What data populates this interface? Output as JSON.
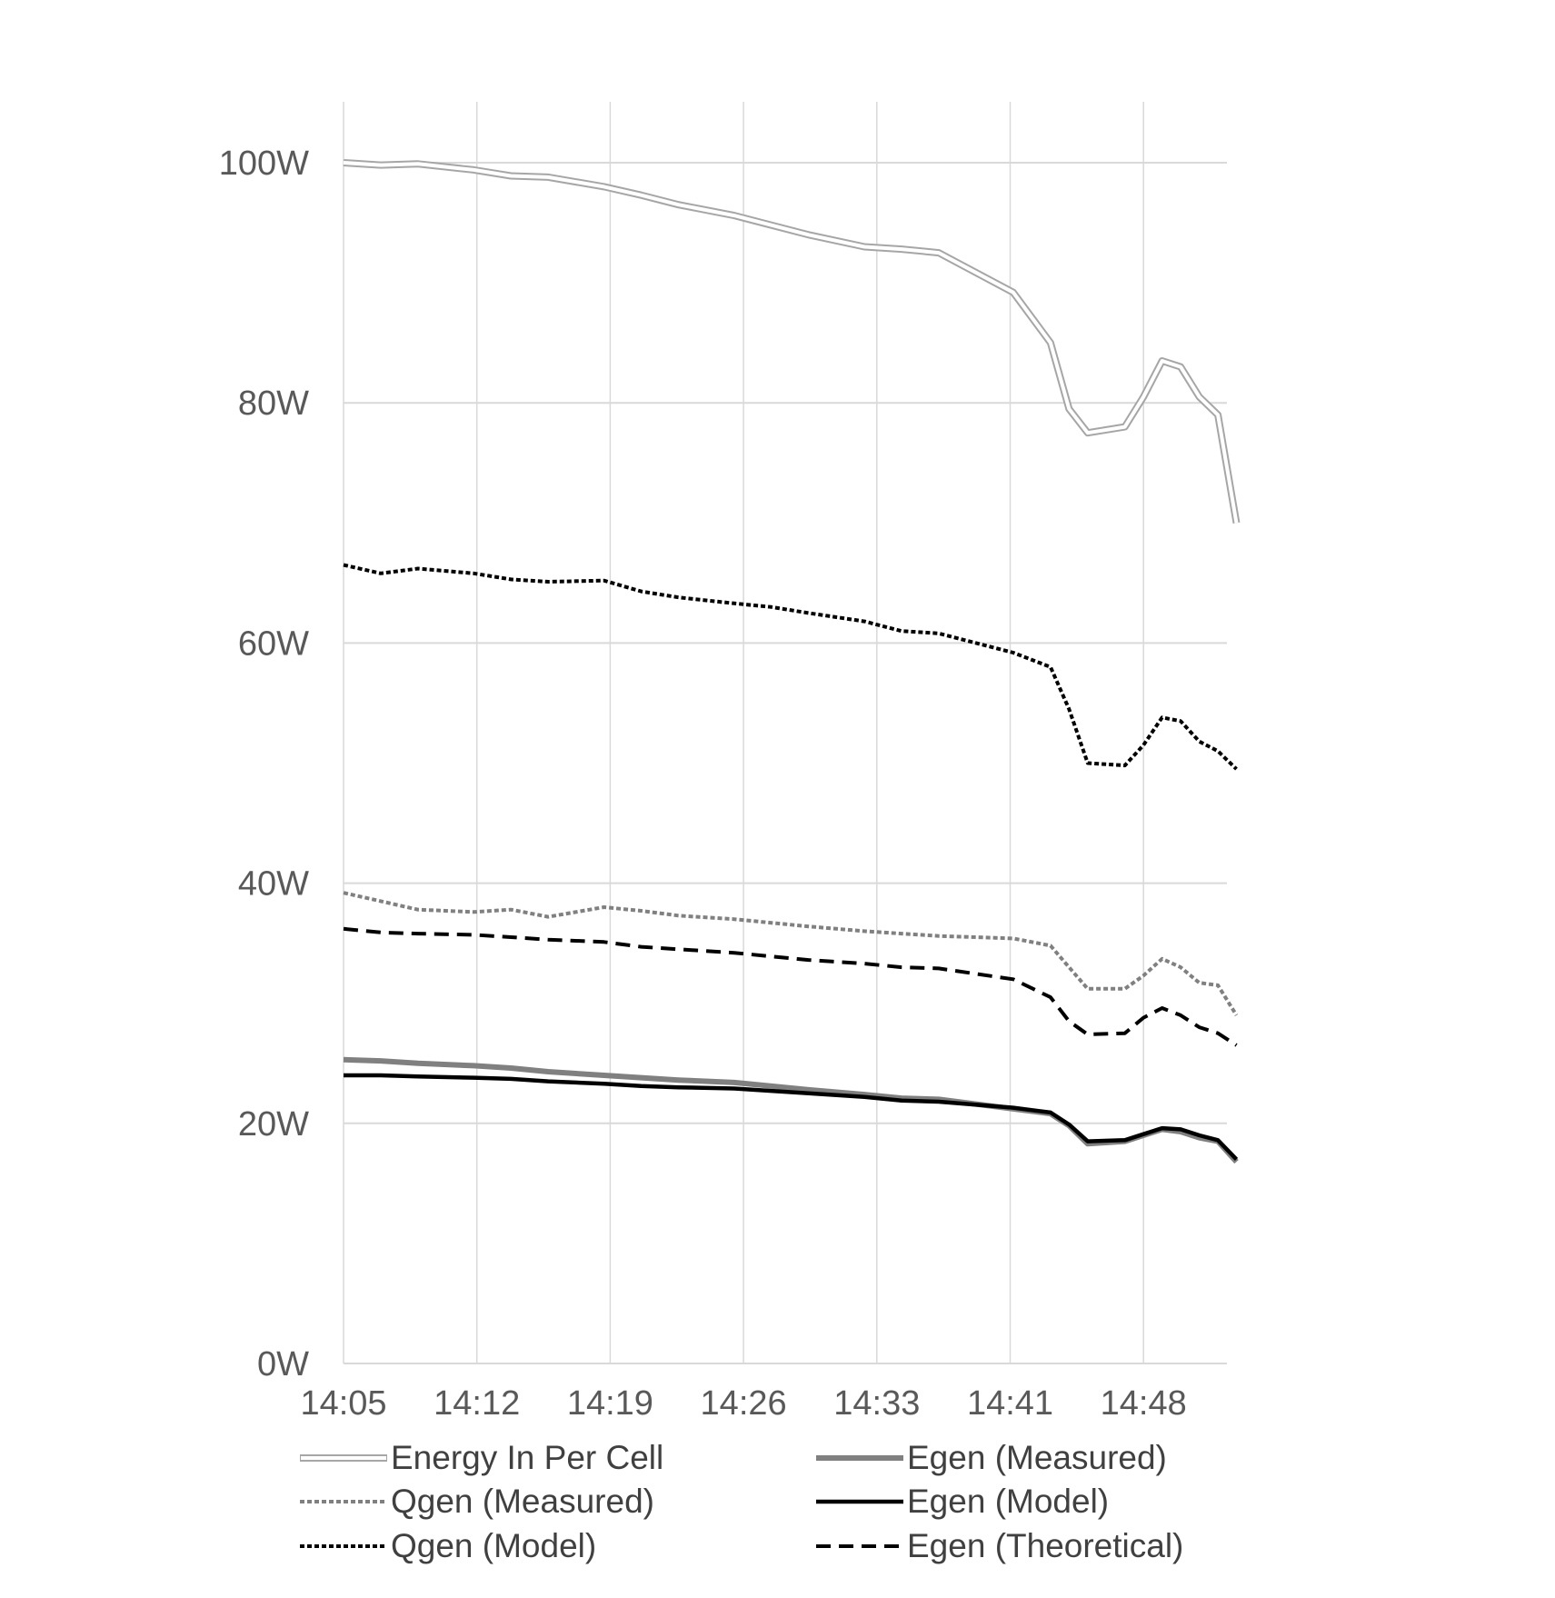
{
  "chart_data": {
    "type": "line",
    "title": "",
    "xlabel": "",
    "ylabel": "",
    "ylim": [
      0,
      105
    ],
    "y_ticks": [
      "0W",
      "20W",
      "40W",
      "60W",
      "80W",
      "100W"
    ],
    "x_ticks": [
      "14:05",
      "14:12",
      "14:19",
      "14:26",
      "14:33",
      "14:41",
      "14:48"
    ],
    "grid": "major horizontal and vertical",
    "legend_position": "bottom",
    "x": [
      "14:05",
      "14:07",
      "14:09",
      "14:12",
      "14:14",
      "14:16",
      "14:19",
      "14:21",
      "14:23",
      "14:26",
      "14:28",
      "14:30",
      "14:33",
      "14:35",
      "14:37",
      "14:41",
      "14:43",
      "14:44",
      "14:45",
      "14:47",
      "14:48",
      "14:49",
      "14:50",
      "14:51",
      "14:52",
      "14:53"
    ],
    "series": [
      {
        "name": "Energy In Per Cell",
        "style": "double-outline",
        "color": "#a6a6a6",
        "values": [
          100,
          99.8,
          99.9,
          99.4,
          98.9,
          98.8,
          98.0,
          97.3,
          96.5,
          95.6,
          94.8,
          94.0,
          93.0,
          92.8,
          92.5,
          89.2,
          85.0,
          79.5,
          77.5,
          78.0,
          80.5,
          83.5,
          83.0,
          80.5,
          79.0,
          70.0
        ]
      },
      {
        "name": "Qgen (Measured)",
        "style": "dotted",
        "color": "#808080",
        "values": [
          39.2,
          38.5,
          37.8,
          37.6,
          37.8,
          37.2,
          38.0,
          37.7,
          37.3,
          37.0,
          36.7,
          36.4,
          36.0,
          35.8,
          35.6,
          35.4,
          34.8,
          33.0,
          31.2,
          31.2,
          32.3,
          33.7,
          33.0,
          31.7,
          31.5,
          29.0
        ]
      },
      {
        "name": "Qgen (Model)",
        "style": "dotted",
        "color": "#000000",
        "values": [
          66.5,
          65.8,
          66.2,
          65.8,
          65.3,
          65.1,
          65.2,
          64.3,
          63.8,
          63.3,
          63.0,
          62.5,
          61.8,
          61.0,
          60.8,
          59.2,
          58.0,
          54.5,
          50.0,
          49.8,
          51.5,
          53.8,
          53.5,
          51.8,
          51.0,
          49.5
        ]
      },
      {
        "name": "Egen (Measured)",
        "style": "solid-thick",
        "color": "#808080",
        "values": [
          25.3,
          25.2,
          25.0,
          24.8,
          24.6,
          24.3,
          24.0,
          23.8,
          23.6,
          23.4,
          23.1,
          22.8,
          22.4,
          22.1,
          22.0,
          21.2,
          20.8,
          19.8,
          18.3,
          18.5,
          19.0,
          19.5,
          19.3,
          18.8,
          18.5,
          16.8
        ]
      },
      {
        "name": "Egen (Model)",
        "style": "solid",
        "color": "#000000",
        "values": [
          24.0,
          24.0,
          23.9,
          23.8,
          23.7,
          23.5,
          23.3,
          23.1,
          23.0,
          22.9,
          22.7,
          22.5,
          22.2,
          21.9,
          21.8,
          21.3,
          20.9,
          19.9,
          18.5,
          18.6,
          19.1,
          19.6,
          19.5,
          19.0,
          18.6,
          17.0
        ]
      },
      {
        "name": "Egen (Theoretical)",
        "style": "dashed",
        "color": "#000000",
        "values": [
          36.2,
          35.9,
          35.8,
          35.7,
          35.5,
          35.3,
          35.1,
          34.7,
          34.5,
          34.2,
          33.9,
          33.6,
          33.3,
          33.0,
          32.9,
          32.0,
          30.5,
          28.5,
          27.4,
          27.5,
          28.8,
          29.6,
          29.0,
          28.0,
          27.5,
          26.5
        ]
      }
    ]
  },
  "legend": {
    "entries": [
      {
        "label": "Energy In Per Cell",
        "style": "double-outline",
        "color": "#a6a6a6"
      },
      {
        "label": "Qgen (Measured)",
        "style": "dotted",
        "color": "#808080"
      },
      {
        "label": "Qgen (Model)",
        "style": "dotted",
        "color": "#000000"
      },
      {
        "label": "Egen (Measured)",
        "style": "solid-thick",
        "color": "#808080"
      },
      {
        "label": "Egen (Model)",
        "style": "solid",
        "color": "#000000"
      },
      {
        "label": "Egen (Theoretical)",
        "style": "dashed",
        "color": "#000000"
      }
    ]
  },
  "colors": {
    "grid": "#d9d9d9",
    "tick_text": "#595959",
    "legend_text": "#404040"
  }
}
